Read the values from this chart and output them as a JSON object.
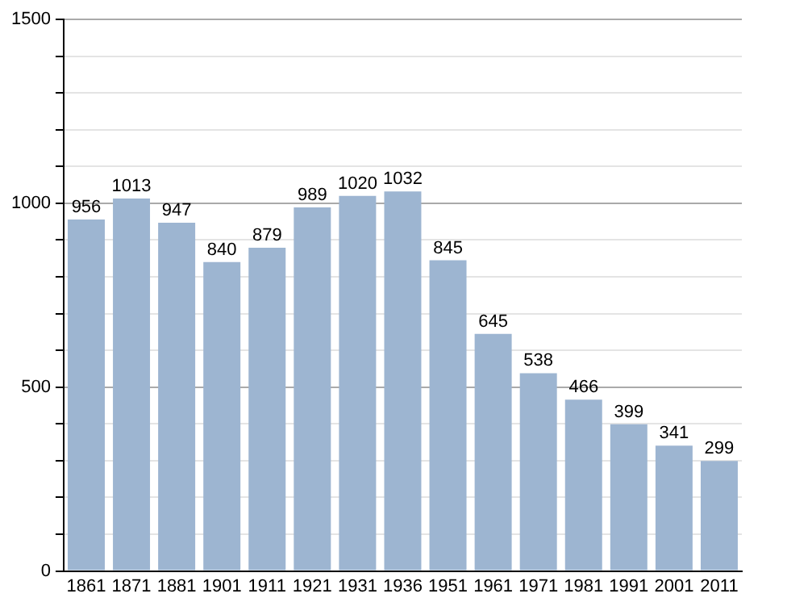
{
  "chart_data": {
    "type": "bar",
    "categories": [
      "1861",
      "1871",
      "1881",
      "1901",
      "1911",
      "1921",
      "1931",
      "1936",
      "1951",
      "1961",
      "1971",
      "1981",
      "1991",
      "2001",
      "2011"
    ],
    "values": [
      956,
      1013,
      947,
      840,
      879,
      989,
      1020,
      1032,
      845,
      645,
      538,
      466,
      399,
      341,
      299
    ],
    "color": "#9db5d1",
    "ylim": [
      0,
      1500
    ],
    "yticks": [
      0,
      {
        "value": 100,
        "label": null
      },
      {
        "value": 200,
        "label": null
      },
      {
        "value": 300,
        "label": null
      },
      {
        "value": 400,
        "label": null
      },
      500,
      {
        "value": 600,
        "label": null
      },
      {
        "value": 700,
        "label": null
      },
      {
        "value": 800,
        "label": null
      },
      {
        "value": 900,
        "label": null
      },
      1000,
      {
        "value": 1100,
        "label": null
      },
      {
        "value": 1200,
        "label": null
      },
      {
        "value": 1300,
        "label": null
      },
      {
        "value": 1400,
        "label": null
      },
      1500
    ],
    "grid": "y",
    "data_labels": true
  }
}
